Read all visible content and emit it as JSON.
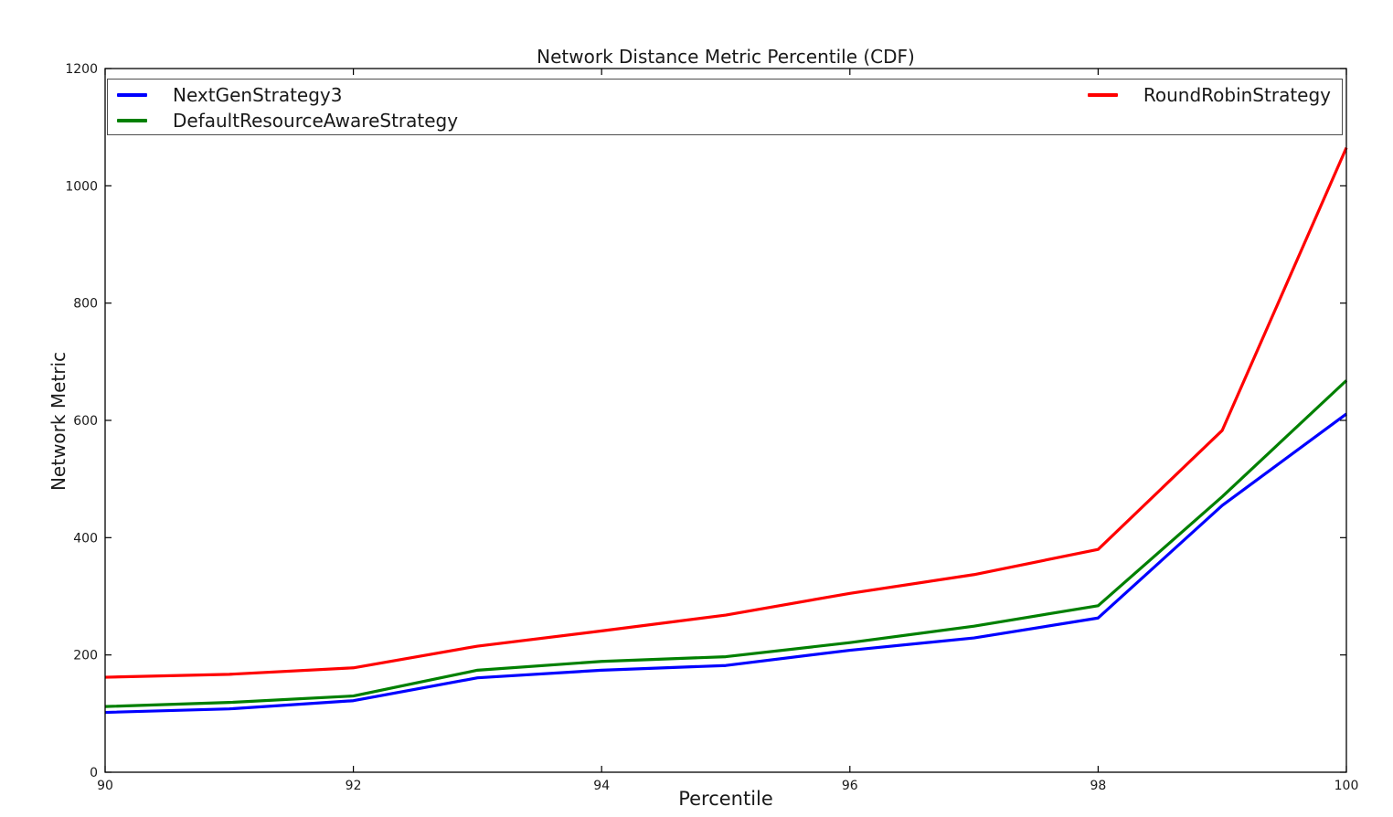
{
  "chart_data": {
    "type": "line",
    "title": "Network Distance Metric Percentile (CDF)",
    "xlabel": "Percentile",
    "ylabel": "Network Metric",
    "xlim": [
      90,
      100
    ],
    "ylim": [
      0,
      1200
    ],
    "xticks": [
      "90",
      "92",
      "94",
      "96",
      "98",
      "100"
    ],
    "yticks": [
      "0",
      "200",
      "400",
      "600",
      "800",
      "1000",
      "1200"
    ],
    "grid": false,
    "legend_position": "top full-width, two columns, framed",
    "x": [
      90,
      91,
      92,
      93,
      94,
      95,
      96,
      97,
      98,
      99,
      100
    ],
    "series": [
      {
        "name": "NextGenStrategy3",
        "color": "#0000ff",
        "values": [
          102,
          108,
          122,
          161,
          174,
          182,
          208,
          229,
          263,
          455,
          611
        ]
      },
      {
        "name": "DefaultResourceAwareStrategy",
        "color": "#008000",
        "values": [
          112,
          119,
          130,
          174,
          189,
          197,
          221,
          249,
          284,
          470,
          668
        ]
      },
      {
        "name": "RoundRobinStrategy",
        "color": "#ff0000",
        "values": [
          162,
          167,
          178,
          215,
          241,
          268,
          305,
          337,
          380,
          583,
          1065
        ]
      }
    ]
  }
}
